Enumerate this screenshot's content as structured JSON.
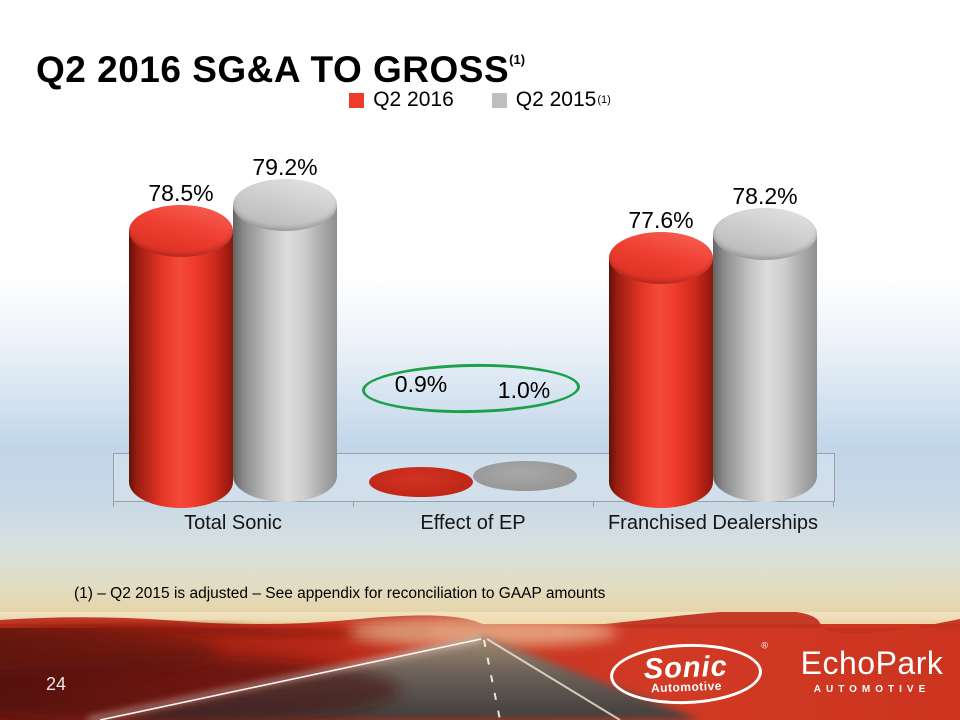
{
  "slide": {
    "title": "Q2 2016 SG&A TO GROSS",
    "title_footnote_ref": "(1)",
    "footnote": "(1) – Q2 2015 is adjusted – See appendix for reconciliation to GAAP amounts",
    "page_number": "24"
  },
  "legend": {
    "items": [
      {
        "label": "Q2 2016",
        "sup": "",
        "color": "#ee3b2e"
      },
      {
        "label": "Q2 2015",
        "sup": "(1)",
        "color": "#bfbfbf"
      }
    ]
  },
  "chart_data": {
    "type": "bar",
    "subtype": "3d-cylinder",
    "title": "Q2 2016 SG&A TO GROSS (1)",
    "categories": [
      "Total Sonic",
      "Effect of EP",
      "Franchised Dealerships"
    ],
    "series": [
      {
        "name": "Q2 2016",
        "color": "#ee3b2e",
        "values": [
          78.5,
          0.9,
          77.6
        ]
      },
      {
        "name": "Q2 2015 (1)",
        "color": "#bfbfbf",
        "values": [
          79.2,
          1.0,
          78.2
        ]
      }
    ],
    "value_format": "0.0%",
    "data_labels": [
      [
        "78.5%",
        "0.9%",
        "77.6%"
      ],
      [
        "79.2%",
        "1.0%",
        "78.2%"
      ]
    ],
    "axis": {
      "min": 70,
      "max": 80,
      "visible_ticks": false
    },
    "legend_position": "top",
    "grid": false,
    "annotation": {
      "type": "ellipse-highlight",
      "color": "#1ca04a",
      "around": "Effect of EP data labels (0.9% / 1.0%)"
    }
  },
  "footer": {
    "sonic_logo": {
      "text": "Sonic",
      "subtext": "Automotive",
      "reg": "®"
    },
    "echopark_logo": {
      "text": "EchoPark",
      "subtext": "AUTOMOTIVE"
    }
  }
}
